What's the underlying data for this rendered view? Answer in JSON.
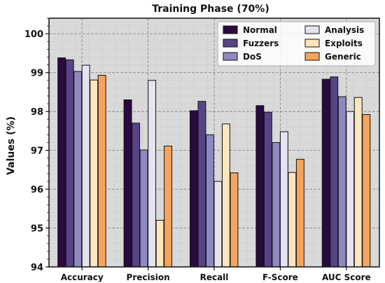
{
  "chart_data": {
    "type": "bar",
    "title": "Training Phase (70%)",
    "xlabel": "",
    "ylabel": "Values (%)",
    "ylim": [
      94,
      100.4
    ],
    "yticks": [
      "94",
      "95",
      "96",
      "97",
      "98",
      "99",
      "100"
    ],
    "grid": true,
    "legend_position": "top-right",
    "categories": [
      "Accuracy",
      "Precision",
      "Recall",
      "F-Score",
      "AUC Score"
    ],
    "series": [
      {
        "name": "Normal",
        "color": "#2a0a3f",
        "values": [
          99.38,
          98.3,
          98.02,
          98.15,
          98.83
        ]
      },
      {
        "name": "Fuzzers",
        "color": "#574486",
        "values": [
          99.33,
          97.7,
          98.26,
          97.98,
          98.89
        ]
      },
      {
        "name": "DoS",
        "color": "#8f89c2",
        "values": [
          99.03,
          97.01,
          97.4,
          97.2,
          98.38
        ]
      },
      {
        "name": "Analysis",
        "color": "#e6e3f1",
        "values": [
          99.19,
          98.8,
          96.2,
          97.48,
          98.0
        ]
      },
      {
        "name": "Exploits",
        "color": "#fde5bd",
        "values": [
          98.81,
          95.2,
          97.68,
          96.43,
          98.36
        ]
      },
      {
        "name": "Generic",
        "color": "#f6a45c",
        "values": [
          98.93,
          97.11,
          96.42,
          96.77,
          97.92
        ]
      }
    ]
  }
}
